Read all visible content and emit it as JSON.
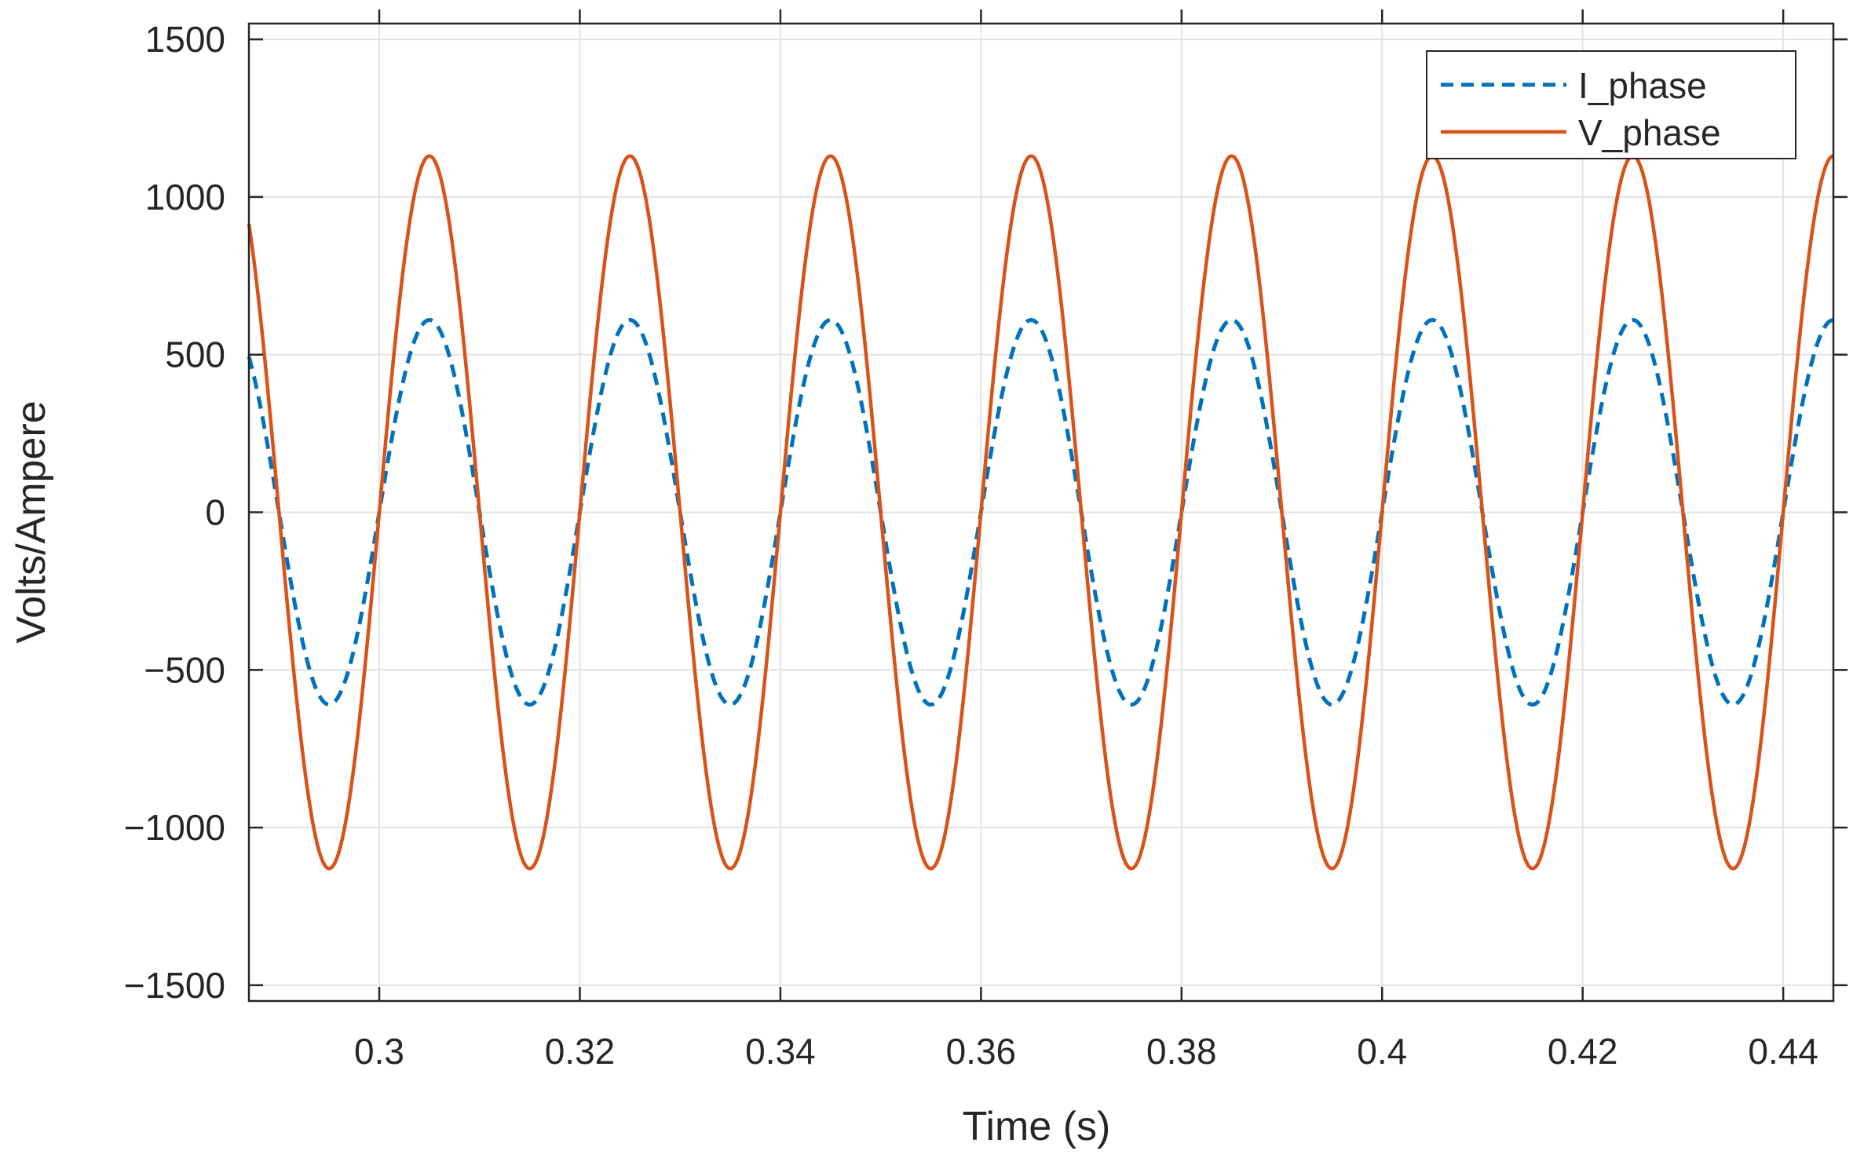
{
  "chart_data": {
    "type": "line",
    "title": "",
    "xlabel": "Time (s)",
    "ylabel": "Volts/Ampere",
    "xlim": [
      0.287,
      0.445
    ],
    "ylim": [
      -1550,
      1550
    ],
    "xticks": [
      0.3,
      0.32,
      0.34,
      0.36,
      0.38,
      0.4,
      0.42,
      0.44
    ],
    "xtick_labels": [
      "0.3",
      "0.32",
      "0.34",
      "0.36",
      "0.38",
      "0.4",
      "0.42",
      "0.44"
    ],
    "yticks": [
      1500,
      1000,
      500,
      0,
      -500,
      -1000,
      -1500
    ],
    "ytick_labels": [
      "1500",
      "1000",
      "500",
      "0",
      "−500",
      "−1000",
      "−1500"
    ],
    "grid": true,
    "legend": "top-right",
    "series": [
      {
        "name": "I_phase",
        "color": "#0072BD",
        "style": "dashed",
        "amplitude": 610,
        "frequency_hz": 50,
        "peak_times": [
          0.305,
          0.325,
          0.345,
          0.365,
          0.385,
          0.405,
          0.425,
          0.445
        ],
        "trough_times": [
          0.295,
          0.315,
          0.335,
          0.355,
          0.375,
          0.395,
          0.415,
          0.435
        ]
      },
      {
        "name": "V_phase",
        "color": "#D95319",
        "style": "solid",
        "amplitude": 1130,
        "frequency_hz": 50,
        "peak_times": [
          0.305,
          0.325,
          0.345,
          0.365,
          0.385,
          0.405,
          0.425,
          0.445
        ],
        "trough_times": [
          0.295,
          0.315,
          0.335,
          0.355,
          0.375,
          0.395,
          0.415,
          0.435
        ]
      }
    ]
  }
}
